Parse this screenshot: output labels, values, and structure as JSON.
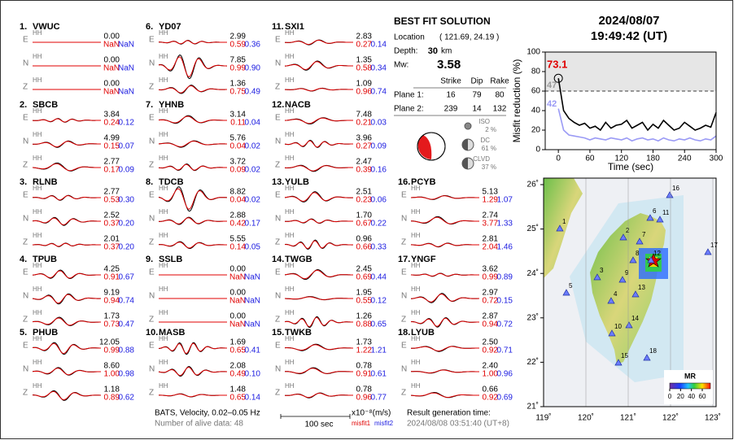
{
  "stations": [
    {
      "number": "1.",
      "name": "VWUC",
      "components": [
        {
          "comp": "E",
          "band": "HH",
          "amplitude": "0.00",
          "misfit1": "NaN",
          "misfit2": "NaN"
        },
        {
          "comp": "N",
          "band": "HH",
          "amplitude": "0.00",
          "misfit1": "NaN",
          "misfit2": "NaN"
        },
        {
          "comp": "Z",
          "band": "HH",
          "amplitude": "0.00",
          "misfit1": "NaN",
          "misfit2": "NaN"
        }
      ]
    },
    {
      "number": "2.",
      "name": "SBCB",
      "components": [
        {
          "comp": "E",
          "band": "HH",
          "amplitude": "3.84",
          "misfit1": "0.24",
          "misfit2": "0.12"
        },
        {
          "comp": "N",
          "band": "HH",
          "amplitude": "4.99",
          "misfit1": "0.15",
          "misfit2": "0.07"
        },
        {
          "comp": "Z",
          "band": "HH",
          "amplitude": "2.77",
          "misfit1": "0.17",
          "misfit2": "0.09"
        }
      ]
    },
    {
      "number": "3.",
      "name": "RLNB",
      "components": [
        {
          "comp": "E",
          "band": "HH",
          "amplitude": "2.77",
          "misfit1": "0.53",
          "misfit2": "0.30"
        },
        {
          "comp": "N",
          "band": "HH",
          "amplitude": "2.52",
          "misfit1": "0.37",
          "misfit2": "0.20"
        },
        {
          "comp": "Z",
          "band": "HH",
          "amplitude": "2.01",
          "misfit1": "0.37",
          "misfit2": "0.20"
        }
      ]
    },
    {
      "number": "4.",
      "name": "TPUB",
      "components": [
        {
          "comp": "E",
          "band": "HH",
          "amplitude": "4.25",
          "misfit1": "0.91",
          "misfit2": "0.67"
        },
        {
          "comp": "N",
          "band": "HH",
          "amplitude": "9.19",
          "misfit1": "0.94",
          "misfit2": "0.74"
        },
        {
          "comp": "Z",
          "band": "HH",
          "amplitude": "1.73",
          "misfit1": "0.73",
          "misfit2": "0.47"
        }
      ]
    },
    {
      "number": "5.",
      "name": "PHUB",
      "components": [
        {
          "comp": "E",
          "band": "HH",
          "amplitude": "12.05",
          "misfit1": "0.99",
          "misfit2": "0.88"
        },
        {
          "comp": "N",
          "band": "HH",
          "amplitude": "8.60",
          "misfit1": "1.00",
          "misfit2": "0.98"
        },
        {
          "comp": "Z",
          "band": "HH",
          "amplitude": "1.18",
          "misfit1": "0.89",
          "misfit2": "0.62"
        }
      ]
    },
    {
      "number": "6.",
      "name": "YD07",
      "components": [
        {
          "comp": "E",
          "band": "HH",
          "amplitude": "2.99",
          "misfit1": "0.59",
          "misfit2": "0.36"
        },
        {
          "comp": "N",
          "band": "HH",
          "amplitude": "7.85",
          "misfit1": "0.99",
          "misfit2": "0.90"
        },
        {
          "comp": "Z",
          "band": "HH",
          "amplitude": "1.36",
          "misfit1": "0.75",
          "misfit2": "0.49"
        }
      ]
    },
    {
      "number": "7.",
      "name": "YHNB",
      "components": [
        {
          "comp": "E",
          "band": "HH",
          "amplitude": "3.14",
          "misfit1": "0.11",
          "misfit2": "0.04"
        },
        {
          "comp": "N",
          "band": "HH",
          "amplitude": "5.76",
          "misfit1": "0.04",
          "misfit2": "0.02"
        },
        {
          "comp": "Z",
          "band": "HH",
          "amplitude": "3.72",
          "misfit1": "0.09",
          "misfit2": "0.02"
        }
      ]
    },
    {
      "number": "8.",
      "name": "TDCB",
      "components": [
        {
          "comp": "E",
          "band": "HH",
          "amplitude": "8.82",
          "misfit1": "0.04",
          "misfit2": "0.02"
        },
        {
          "comp": "N",
          "band": "HH",
          "amplitude": "2.88",
          "misfit1": "0.42",
          "misfit2": "0.17"
        },
        {
          "comp": "Z",
          "band": "HH",
          "amplitude": "5.55",
          "misfit1": "0.14",
          "misfit2": "0.05"
        }
      ]
    },
    {
      "number": "9.",
      "name": "SSLB",
      "components": [
        {
          "comp": "E",
          "band": "HH",
          "amplitude": "0.00",
          "misfit1": "NaN",
          "misfit2": "NaN"
        },
        {
          "comp": "N",
          "band": "HH",
          "amplitude": "0.00",
          "misfit1": "NaN",
          "misfit2": "NaN"
        },
        {
          "comp": "Z",
          "band": "HH",
          "amplitude": "0.00",
          "misfit1": "NaN",
          "misfit2": "NaN"
        }
      ]
    },
    {
      "number": "10.",
      "name": "MASB",
      "components": [
        {
          "comp": "E",
          "band": "HH",
          "amplitude": "1.69",
          "misfit1": "0.65",
          "misfit2": "0.41"
        },
        {
          "comp": "N",
          "band": "HH",
          "amplitude": "2.08",
          "misfit1": "0.49",
          "misfit2": "0.10"
        },
        {
          "comp": "Z",
          "band": "HH",
          "amplitude": "1.48",
          "misfit1": "0.65",
          "misfit2": "0.14"
        }
      ]
    },
    {
      "number": "11.",
      "name": "SXI1",
      "components": [
        {
          "comp": "E",
          "band": "HH",
          "amplitude": "2.83",
          "misfit1": "0.27",
          "misfit2": "0.14"
        },
        {
          "comp": "N",
          "band": "HH",
          "amplitude": "1.35",
          "misfit1": "0.58",
          "misfit2": "0.34"
        },
        {
          "comp": "Z",
          "band": "HH",
          "amplitude": "1.09",
          "misfit1": "0.96",
          "misfit2": "0.74"
        }
      ]
    },
    {
      "number": "12.",
      "name": "NACB",
      "components": [
        {
          "comp": "E",
          "band": "HH",
          "amplitude": "7.48",
          "misfit1": "0.21",
          "misfit2": "0.03"
        },
        {
          "comp": "N",
          "band": "HH",
          "amplitude": "3.96",
          "misfit1": "0.27",
          "misfit2": "0.09"
        },
        {
          "comp": "Z",
          "band": "HH",
          "amplitude": "2.47",
          "misfit1": "0.39",
          "misfit2": "0.16"
        }
      ]
    },
    {
      "number": "13.",
      "name": "YULB",
      "components": [
        {
          "comp": "E",
          "band": "HH",
          "amplitude": "2.51",
          "misfit1": "0.23",
          "misfit2": "0.06"
        },
        {
          "comp": "N",
          "band": "HH",
          "amplitude": "1.70",
          "misfit1": "0.67",
          "misfit2": "0.22"
        },
        {
          "comp": "Z",
          "band": "HH",
          "amplitude": "0.96",
          "misfit1": "0.66",
          "misfit2": "0.33"
        }
      ]
    },
    {
      "number": "14.",
      "name": "TWGB",
      "components": [
        {
          "comp": "E",
          "band": "HH",
          "amplitude": "2.45",
          "misfit1": "0.69",
          "misfit2": "0.44"
        },
        {
          "comp": "N",
          "band": "HH",
          "amplitude": "1.95",
          "misfit1": "0.55",
          "misfit2": "0.12"
        },
        {
          "comp": "Z",
          "band": "HH",
          "amplitude": "1.26",
          "misfit1": "0.88",
          "misfit2": "0.65"
        }
      ]
    },
    {
      "number": "15.",
      "name": "TWKB",
      "components": [
        {
          "comp": "E",
          "band": "HH",
          "amplitude": "1.73",
          "misfit1": "1.22",
          "misfit2": "1.21"
        },
        {
          "comp": "N",
          "band": "HH",
          "amplitude": "0.78",
          "misfit1": "0.91",
          "misfit2": "0.61"
        },
        {
          "comp": "Z",
          "band": "HH",
          "amplitude": "0.78",
          "misfit1": "0.96",
          "misfit2": "0.77"
        }
      ]
    },
    {
      "number": "16.",
      "name": "PCYB",
      "components": [
        {
          "comp": "E",
          "band": "HH",
          "amplitude": "5.13",
          "misfit1": "1.29",
          "misfit2": "1.07"
        },
        {
          "comp": "N",
          "band": "HH",
          "amplitude": "2.74",
          "misfit1": "3.77",
          "misfit2": "1.33"
        },
        {
          "comp": "Z",
          "band": "HH",
          "amplitude": "2.81",
          "misfit1": "2.04",
          "misfit2": "1.46"
        }
      ]
    },
    {
      "number": "17.",
      "name": "YNGF",
      "components": [
        {
          "comp": "E",
          "band": "HH",
          "amplitude": "3.62",
          "misfit1": "0.99",
          "misfit2": "0.89"
        },
        {
          "comp": "N",
          "band": "HH",
          "amplitude": "2.97",
          "misfit1": "0.72",
          "misfit2": "0.15"
        },
        {
          "comp": "Z",
          "band": "HH",
          "amplitude": "2.87",
          "misfit1": "0.94",
          "misfit2": "0.72"
        }
      ]
    },
    {
      "number": "18.",
      "name": "LYUB",
      "components": [
        {
          "comp": "E",
          "band": "HH",
          "amplitude": "2.50",
          "misfit1": "0.92",
          "misfit2": "0.71"
        },
        {
          "comp": "N",
          "band": "HH",
          "amplitude": "2.40",
          "misfit1": "1.00",
          "misfit2": "0.96"
        },
        {
          "comp": "Z",
          "band": "HH",
          "amplitude": "0.66",
          "misfit1": "0.92",
          "misfit2": "0.69"
        }
      ]
    }
  ],
  "solution": {
    "title": "BEST FIT SOLUTION",
    "location_label": "Location",
    "location": "( 121.69, 24.19 )",
    "depth_label": "Depth:",
    "depth": "30",
    "depth_unit": "km",
    "mw_label": "Mw:",
    "mw": "3.58",
    "table": {
      "headers": [
        "Strike",
        "Dip",
        "Rake"
      ],
      "rows": [
        {
          "label": "Plane 1:",
          "values": [
            "16",
            "79",
            "80"
          ]
        },
        {
          "label": "Plane 2:",
          "values": [
            "239",
            "14",
            "132"
          ]
        }
      ]
    },
    "components": [
      {
        "name": "ISO",
        "percent": "2 %"
      },
      {
        "name": "DC",
        "percent": "61 %"
      },
      {
        "name": "CLVD",
        "percent": "37 %"
      }
    ]
  },
  "datetime": {
    "date": "2024/08/07",
    "time": "19:49:42  (UT)"
  },
  "chart_data": {
    "type": "line",
    "y_label": "Misfit reduction (%)",
    "x_label": "Time (sec)",
    "x": [
      0,
      10,
      20,
      30,
      40,
      50,
      60,
      70,
      80,
      90,
      100,
      110,
      120,
      130,
      140,
      150,
      160,
      170,
      180,
      190,
      200,
      210,
      220,
      230,
      240,
      250,
      260,
      270,
      280,
      290,
      300
    ],
    "series": [
      {
        "name": "misfit1",
        "color": "#000000",
        "values": [
          73.1,
          40,
          32,
          28,
          25,
          27,
          22,
          24,
          20,
          28,
          22,
          25,
          26,
          30,
          22,
          25,
          28,
          20,
          26,
          22,
          30,
          25,
          20,
          22,
          28,
          24,
          20,
          22,
          25,
          23,
          38
        ]
      },
      {
        "name": "misfit2",
        "color": "#9a9af5",
        "values": [
          42,
          20,
          15,
          14,
          13,
          12,
          10,
          12,
          11,
          10,
          12,
          11,
          10,
          12,
          9,
          11,
          12,
          10,
          11,
          9,
          12,
          10,
          9,
          11,
          10,
          12,
          10,
          9,
          11,
          10,
          14
        ]
      }
    ],
    "annotations": [
      "73.1",
      "47",
      "42"
    ],
    "reference_line": 60,
    "xlim": [
      -25,
      300
    ],
    "ylim": [
      0,
      100
    ],
    "xticks": [
      0,
      60,
      120,
      180,
      240,
      300
    ],
    "yticks": [
      0,
      20,
      40,
      60,
      80,
      100
    ]
  },
  "map": {
    "xlim": [
      119,
      123
    ],
    "ylim": [
      21,
      26
    ],
    "xticks": [
      {
        "value": 119,
        "label": "119˚"
      },
      {
        "value": 120,
        "label": "120˚"
      },
      {
        "value": 121,
        "label": "121˚"
      },
      {
        "value": 122,
        "label": "122˚"
      },
      {
        "value": 123,
        "label": "123˚"
      }
    ],
    "yticks": [
      {
        "value": 21,
        "label": "21˚"
      },
      {
        "value": 22,
        "label": "22˚"
      },
      {
        "value": 23,
        "label": "23˚"
      },
      {
        "value": 24,
        "label": "24˚"
      },
      {
        "value": 25,
        "label": "25˚"
      },
      {
        "value": 26,
        "label": "26˚"
      }
    ],
    "markers": [
      "16",
      "6",
      "11",
      "1",
      "2",
      "7",
      "17",
      "8",
      "12",
      "3",
      "9",
      "13",
      "5",
      "4",
      "14",
      "10",
      "18",
      "15"
    ],
    "colorbar": {
      "title": "MR",
      "clim": [
        0,
        75
      ],
      "ticks": [
        0,
        20,
        40,
        60
      ]
    }
  },
  "footer": {
    "line1": "BATS, Velocity, 0.02–0.05 Hz",
    "line2": "Number of alive data: 48",
    "scale": "100 sec",
    "unit": "x10⁻⁸(m/s)",
    "misfit1": "misfit1",
    "misfit2": "misfit2",
    "result_label": "Result generation time:",
    "result_time": "2024/08/08 03:51:40 (UT+8)"
  }
}
